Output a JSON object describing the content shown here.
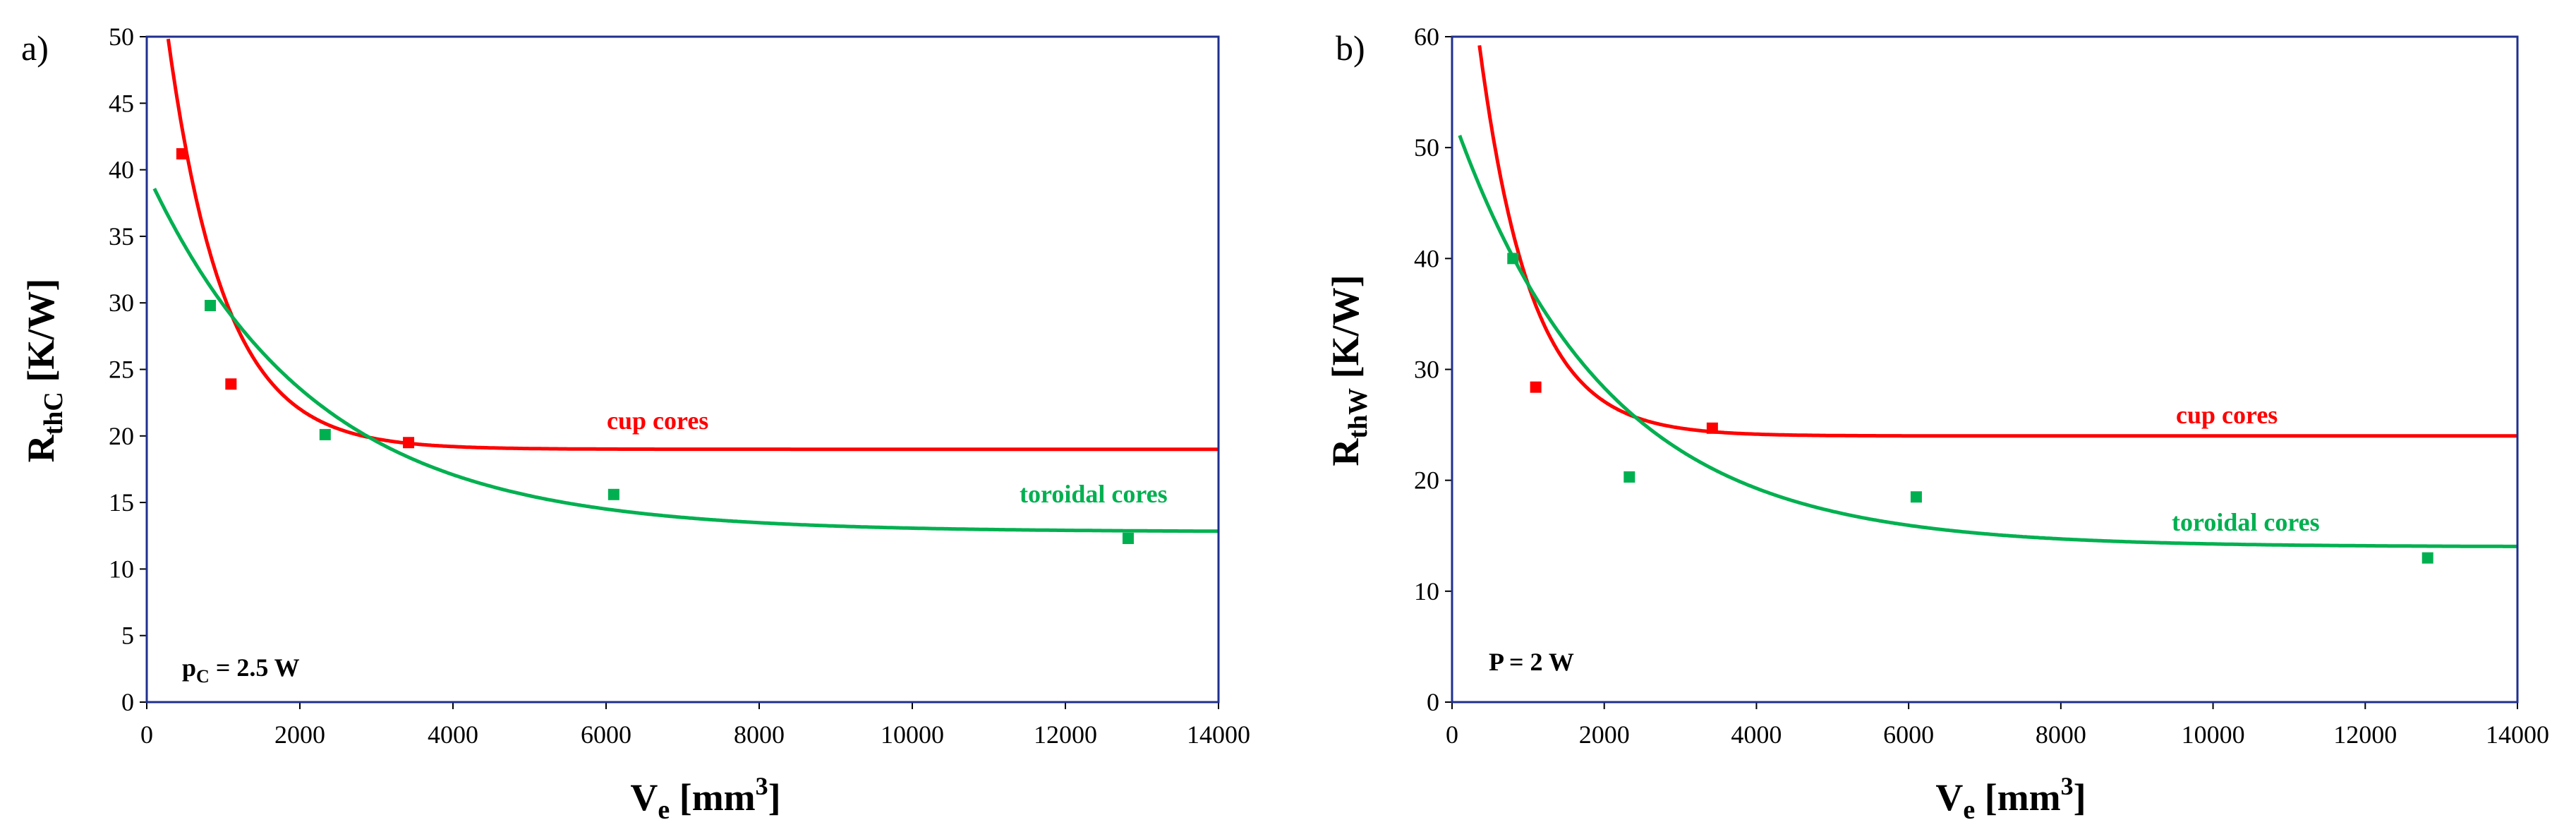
{
  "colors": {
    "cup": "#ff0000",
    "toroidal": "#00b050",
    "frame": "#1f2f8f",
    "text": "#000000"
  },
  "chart_data": [
    {
      "type": "scatter",
      "panel_label": "a)",
      "xlabel_main": "V",
      "xlabel_sub": "e",
      "xlabel_unit": " [mm",
      "xlabel_sup": "3",
      "xlabel_end": "]",
      "ylabel_main": "R",
      "ylabel_sub": "thC",
      "ylabel_unit": " [K/W]",
      "xlim": [
        0,
        14000
      ],
      "ylim": [
        0,
        50
      ],
      "xticks": [
        "0",
        "2000",
        "4000",
        "6000",
        "8000",
        "10000",
        "12000",
        "14000"
      ],
      "yticks": [
        "0",
        "5",
        "10",
        "15",
        "20",
        "25",
        "30",
        "35",
        "40",
        "45",
        "50"
      ],
      "note_main": "p",
      "note_sub": "C",
      "note_rest": " = 2.5 W",
      "series": [
        {
          "name": "cup cores",
          "color": "#ff0000",
          "points": [
            [
              460,
              41.2
            ],
            [
              1100,
              23.9
            ],
            [
              3420,
              19.5
            ]
          ],
          "fit": {
            "a": 19.0,
            "b": 45.0,
            "c": 1.35,
            "x_start": 80,
            "x_end": 14000
          }
        },
        {
          "name": "toroidal cores",
          "color": "#00b050",
          "points": [
            [
              830,
              29.8
            ],
            [
              2330,
              20.1
            ],
            [
              6100,
              15.6
            ],
            [
              12820,
              12.3
            ]
          ],
          "fit": {
            "a": 12.8,
            "b": 27.0,
            "c": 0.46,
            "x_start": 100,
            "x_end": 14000
          }
        }
      ]
    },
    {
      "type": "scatter",
      "panel_label": "b)",
      "xlabel_main": "V",
      "xlabel_sub": "e",
      "xlabel_unit": " [mm",
      "xlabel_sup": "3",
      "xlabel_end": "]",
      "ylabel_main": "R",
      "ylabel_sub": "thW",
      "ylabel_unit": " [K/W]",
      "xlim": [
        0,
        14000
      ],
      "ylim": [
        0,
        60
      ],
      "xticks": [
        "0",
        "2000",
        "4000",
        "6000",
        "8000",
        "10000",
        "12000",
        "14000"
      ],
      "yticks": [
        "0",
        "10",
        "20",
        "30",
        "40",
        "50",
        "60"
      ],
      "note_main": "P = 2 W",
      "note_sub": "",
      "note_rest": "",
      "series": [
        {
          "name": "cup cores",
          "color": "#ff0000",
          "points": [
            [
              1100,
              28.4
            ],
            [
              3420,
              24.7
            ]
          ],
          "fit": {
            "a": 24.0,
            "b": 60.0,
            "c": 1.48,
            "x_start": 80,
            "x_end": 14000
          }
        },
        {
          "name": "toroidal cores",
          "color": "#00b050",
          "points": [
            [
              800,
              40.0
            ],
            [
              2330,
              20.3
            ],
            [
              6100,
              18.5
            ],
            [
              12820,
              13.0
            ]
          ],
          "fit": {
            "a": 14.0,
            "b": 39.0,
            "c": 0.5,
            "x_start": 100,
            "x_end": 14000
          }
        }
      ]
    }
  ]
}
